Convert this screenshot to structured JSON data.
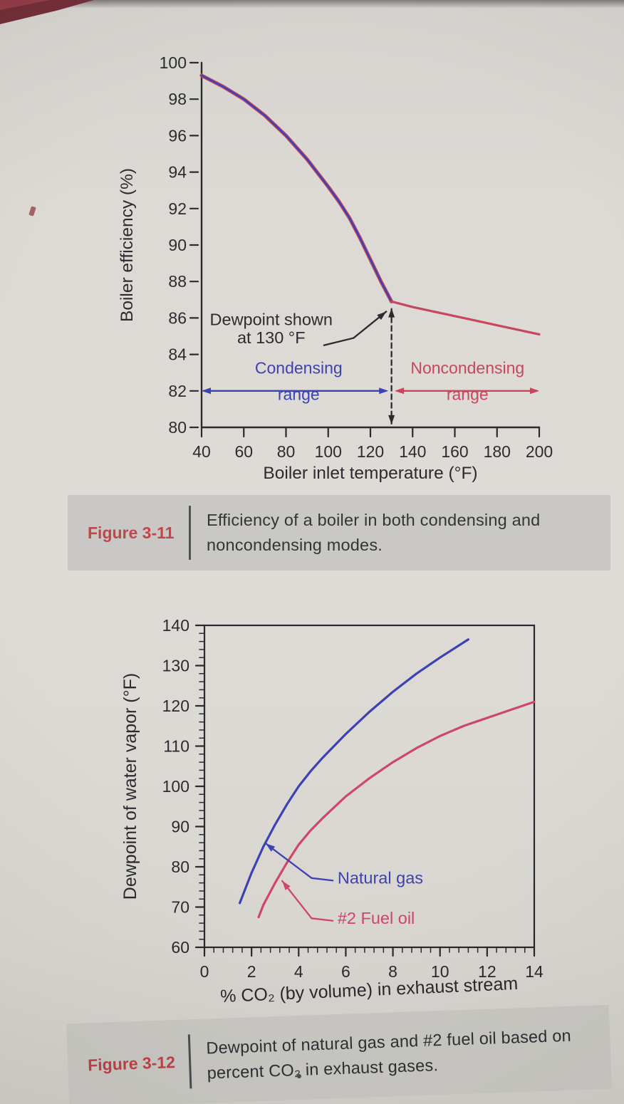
{
  "page": {
    "background": "#d8d6d1",
    "caption_background": "#c6c5c0"
  },
  "colors": {
    "ink": "#1e1e22",
    "blue": "#3136ae",
    "red": "#c43b52",
    "pink_red": "#cb3b60",
    "figure_label_red": "#bd3a3e"
  },
  "figures": [
    {
      "label": "Figure 3-11",
      "caption": "Efficiency of a boiler in both condensing and noncondensing modes."
    },
    {
      "label": "Figure 3-12",
      "caption": "Dewpoint of natural gas and #2 fuel oil based on percent CO₂ in exhaust gases."
    }
  ],
  "chart_data": [
    {
      "type": "line",
      "title": "",
      "xlabel": "Boiler inlet temperature (°F)",
      "ylabel": "Boiler efficiency (%)",
      "xlim": [
        40,
        200
      ],
      "ylim": [
        80,
        100
      ],
      "xticks": [
        40,
        60,
        80,
        100,
        120,
        140,
        160,
        180,
        200
      ],
      "yticks": [
        80,
        82,
        84,
        86,
        88,
        90,
        92,
        94,
        96,
        98,
        100
      ],
      "frame": "axes",
      "grid": false,
      "legend_position": "none",
      "series": [
        {
          "name": "Condensing mode",
          "color": "#3136ae",
          "width": 2.6,
          "underlay": "#c43b52",
          "underlay_width": 5.2,
          "x": [
            40,
            50,
            60,
            70,
            80,
            90,
            100,
            105,
            110,
            115,
            120,
            125,
            130
          ],
          "y": [
            99.3,
            98.7,
            98.0,
            97.1,
            96.0,
            94.7,
            93.2,
            92.4,
            91.5,
            90.4,
            89.2,
            88.0,
            86.9
          ]
        },
        {
          "name": "Noncondensing mode",
          "color": "#c43b52",
          "width": 3.2,
          "x": [
            130,
            140,
            150,
            160,
            170,
            180,
            190,
            200
          ],
          "y": [
            86.9,
            86.6,
            86.35,
            86.1,
            85.85,
            85.6,
            85.35,
            85.1
          ]
        }
      ],
      "annotations": {
        "dewpoint": {
          "lines": [
            "Dewpoint shown",
            "at 130 °F"
          ],
          "x": 73,
          "y": [
            85.6,
            84.6
          ],
          "arrow": [
            [
              98,
              84.5
            ],
            [
              112,
              84.9
            ],
            [
              127.5,
              86.35
            ]
          ]
        },
        "dashed": {
          "x": 130,
          "y_top": 86.5,
          "y_bottom": 80.2
        },
        "ranges": [
          {
            "lines": [
              "Condensing",
              "range"
            ],
            "color": "#3136ae",
            "x1": 40,
            "x2": 128.5,
            "y": 82,
            "x_text": 86,
            "y_label1": 82.95,
            "y_label2": 81.5
          },
          {
            "lines": [
              "Noncondensing",
              "range"
            ],
            "color": "#c43b52",
            "x1": 131.5,
            "x2": 200,
            "y": 82,
            "x_text": 166,
            "y_label1": 82.95,
            "y_label2": 81.5
          }
        ]
      }
    },
    {
      "type": "line",
      "title": "",
      "xlabel": "% CO₂ (by volume) in exhaust stream",
      "ylabel": "Dewpoint of water vapor (°F)",
      "xlim": [
        0,
        14
      ],
      "ylim": [
        60,
        140
      ],
      "xticks": [
        0,
        2,
        4,
        6,
        8,
        10,
        12,
        14
      ],
      "yticks": [
        60,
        70,
        80,
        90,
        100,
        110,
        120,
        130,
        140
      ],
      "minor_x": 0.4,
      "minor_y": 2,
      "frame": "box",
      "grid": false,
      "legend_position": "inline-labels",
      "series": [
        {
          "name": "Natural gas",
          "color": "#3136ae",
          "width": 3.2,
          "x": [
            1.5,
            2,
            2.5,
            3,
            3.5,
            4,
            4.5,
            5,
            6,
            7,
            8,
            9,
            10,
            11.2
          ],
          "y": [
            71,
            78.5,
            85,
            90.5,
            95.5,
            100,
            103.7,
            107,
            113,
            118.5,
            123.5,
            128,
            132,
            136.5
          ]
        },
        {
          "name": "#2 Fuel oil",
          "color": "#cb3b60",
          "width": 3.2,
          "x": [
            2.3,
            2.5,
            3,
            3.5,
            4,
            4.5,
            5,
            6,
            7,
            8,
            9,
            10,
            11,
            12,
            13,
            14
          ],
          "y": [
            67.5,
            70.5,
            76,
            81,
            85.5,
            89,
            92,
            97.5,
            102,
            106,
            109.5,
            112.5,
            115,
            117,
            119,
            121
          ]
        }
      ],
      "annotations": [
        {
          "label": "Natural gas",
          "color": "#3136ae",
          "text": [
            5.65,
            75.8
          ],
          "arrow": [
            [
              5.45,
              76.6
            ],
            [
              4.55,
              77.2
            ],
            [
              2.6,
              85.8
            ]
          ]
        },
        {
          "label": "#2 Fuel oil",
          "color": "#cb3b60",
          "text": [
            5.65,
            65.8
          ],
          "arrow": [
            [
              5.45,
              66.6
            ],
            [
              4.55,
              67.2
            ],
            [
              3.3,
              76.5
            ]
          ]
        }
      ]
    }
  ]
}
